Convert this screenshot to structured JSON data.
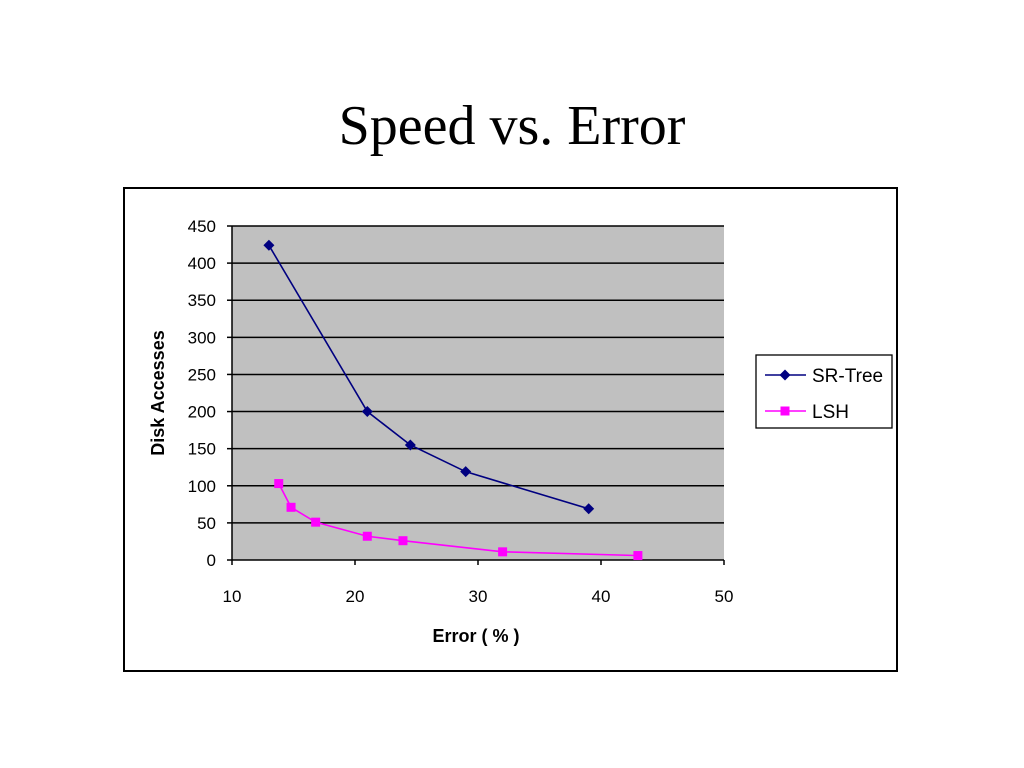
{
  "slide": {
    "title": "Speed vs. Error"
  },
  "colors": {
    "plot_background": "#c0c0c0",
    "gridline": "#000000",
    "sr_tree": "#000080",
    "lsh": "#ff00ff"
  },
  "chart_data": {
    "type": "line",
    "title": "",
    "xlabel": "Error ( % )",
    "ylabel": "Disk Accesses",
    "xlim": [
      10,
      50
    ],
    "ylim": [
      0,
      450
    ],
    "xticks": [
      10,
      20,
      30,
      40,
      50
    ],
    "yticks": [
      0,
      50,
      100,
      150,
      200,
      250,
      300,
      350,
      400,
      450
    ],
    "grid": "horizontal",
    "legend_position": "right",
    "series": [
      {
        "name": "SR-Tree",
        "marker": "diamond",
        "color": "#000080",
        "x": [
          13,
          21,
          24.5,
          29,
          39
        ],
        "y": [
          424,
          200,
          155,
          119,
          69
        ]
      },
      {
        "name": "LSH",
        "marker": "square",
        "color": "#ff00ff",
        "x": [
          13.8,
          14.8,
          16.8,
          21,
          23.9,
          32,
          43
        ],
        "y": [
          103,
          71,
          51,
          32,
          26,
          11,
          6
        ]
      }
    ]
  }
}
